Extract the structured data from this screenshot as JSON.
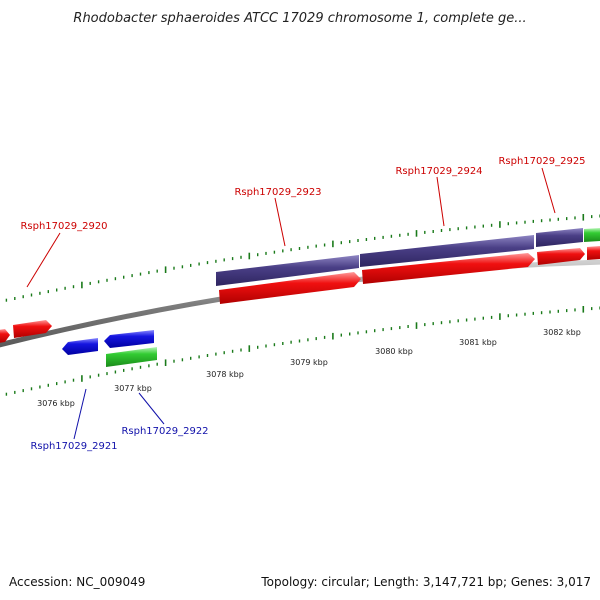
{
  "title": "Rhodobacter sphaeroides ATCC 17029 chromosome 1, complete ge...",
  "footer": {
    "accession": "Accession: NC_009049",
    "summary": "Topology: circular; Length: 3,147,721 bp; Genes: 3,017"
  },
  "colors": {
    "forward_gene": "#e00000",
    "reverse_gene": "#1010d0",
    "rna_gene": "#22bb33",
    "cds_feature": "#4a3f86",
    "backbone": "#8a8a8a",
    "tick": "#1a7a1a",
    "label_forward": "#cc0000",
    "label_reverse": "#1111aa"
  },
  "scale_labels": [
    "3076 kbp",
    "3077 kbp",
    "3078 kbp",
    "3079 kbp",
    "3080 kbp",
    "3081 kbp",
    "3082 kbp"
  ],
  "gene_labels": [
    {
      "name": "Rsph17029_2920",
      "strand": "forward"
    },
    {
      "name": "Rsph17029_2921",
      "strand": "reverse"
    },
    {
      "name": "Rsph17029_2922",
      "strand": "reverse"
    },
    {
      "name": "Rsph17029_2923",
      "strand": "forward"
    },
    {
      "name": "Rsph17029_2924",
      "strand": "forward"
    },
    {
      "name": "Rsph17029_2925",
      "strand": "forward"
    }
  ]
}
